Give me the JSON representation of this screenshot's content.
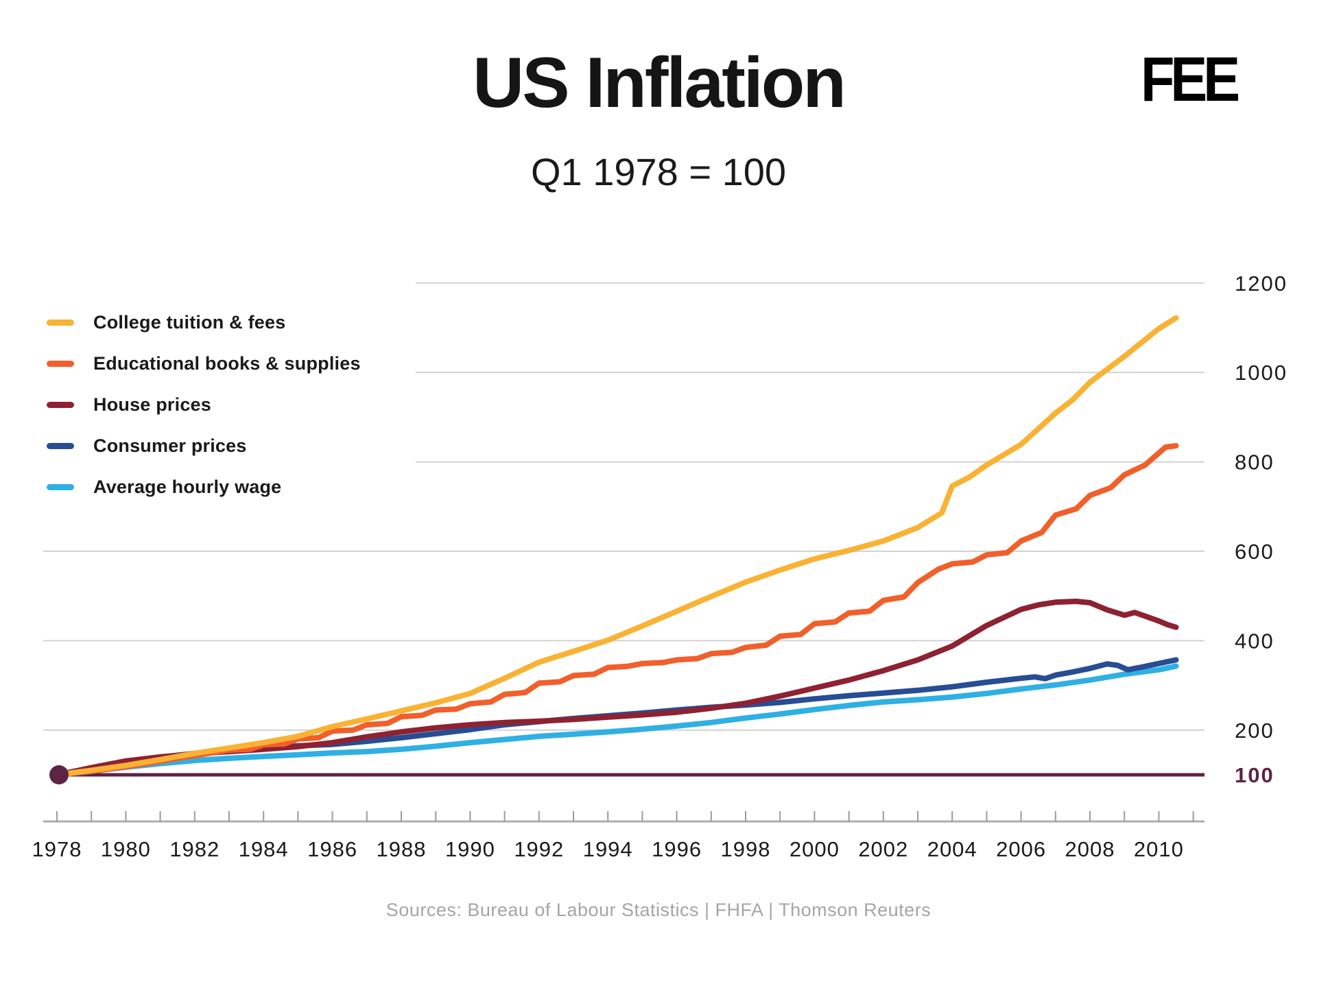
{
  "header": {
    "title": "US Inflation",
    "subtitle": "Q1 1978 = 100",
    "logo": "FEE"
  },
  "source_line": "Sources: Bureau of Labour Statistics | FHFA | Thomson Reuters",
  "colors": {
    "title_text": "#151515",
    "axis_label": "#1a1a1a",
    "gridline": "#d2d2d2",
    "axis_line": "#adadad",
    "tick": "#9a9a9a",
    "baseline": "#5d2444",
    "source_text": "#a5a5a5"
  },
  "legend": {
    "items": [
      {
        "label": "College tuition & fees",
        "color": "#f9b233"
      },
      {
        "label": "Educational books & supplies",
        "color": "#f15f2b"
      },
      {
        "label": "House prices",
        "color": "#8e2232"
      },
      {
        "label": "Consumer prices",
        "color": "#274d94"
      },
      {
        "label": "Average hourly wage",
        "color": "#2fb0e4"
      }
    ]
  },
  "chart_data": {
    "type": "line",
    "title": "US Inflation",
    "subtitle": "Q1 1978 = 100",
    "xlabel": "",
    "ylabel": "",
    "xlim": [
      1978,
      2011.3
    ],
    "ylim": [
      100,
      1230
    ],
    "grid": "horizontal-only",
    "legend_position": "upper-left-outside-plot",
    "x_axis": {
      "minor_tick_start": 1978,
      "minor_tick_end": 2011,
      "label_years": [
        1978,
        1980,
        1982,
        1984,
        1986,
        1988,
        1990,
        1992,
        1994,
        1996,
        1998,
        2000,
        2002,
        2004,
        2006,
        2008,
        2010
      ]
    },
    "y_axis": {
      "labels": [
        {
          "value": 1200,
          "text": "1200",
          "bold": false,
          "color": "#1a1a1a"
        },
        {
          "value": 1000,
          "text": "1000",
          "bold": false,
          "color": "#1a1a1a"
        },
        {
          "value": 800,
          "text": "800",
          "bold": false,
          "color": "#1a1a1a"
        },
        {
          "value": 600,
          "text": "600",
          "bold": false,
          "color": "#1a1a1a"
        },
        {
          "value": 400,
          "text": "400",
          "bold": false,
          "color": "#1a1a1a"
        },
        {
          "value": 200,
          "text": "200",
          "bold": false,
          "color": "#1a1a1a"
        },
        {
          "value": 100,
          "text": "100",
          "bold": true,
          "color": "#5d2444"
        }
      ],
      "gridline_values": [
        200,
        400,
        600,
        800,
        1000,
        1200
      ],
      "short_gridline_values": [
        800,
        1000,
        1200
      ]
    },
    "baseline": {
      "value": 100,
      "color": "#5d2444",
      "start_marker_year": 1978
    },
    "series": [
      {
        "name": "Average hourly wage",
        "slug": "average-hourly-wage",
        "color": "#2fb0e4",
        "points": [
          [
            1978,
            100
          ],
          [
            1979,
            108
          ],
          [
            1980,
            117
          ],
          [
            1981,
            125
          ],
          [
            1982,
            132
          ],
          [
            1983,
            137
          ],
          [
            1984,
            141
          ],
          [
            1985,
            145
          ],
          [
            1986,
            149
          ],
          [
            1987,
            152
          ],
          [
            1988,
            157
          ],
          [
            1989,
            164
          ],
          [
            1990,
            172
          ],
          [
            1991,
            179
          ],
          [
            1992,
            186
          ],
          [
            1993,
            191
          ],
          [
            1994,
            196
          ],
          [
            1995,
            202
          ],
          [
            1996,
            209
          ],
          [
            1997,
            217
          ],
          [
            1998,
            227
          ],
          [
            1999,
            236
          ],
          [
            2000,
            246
          ],
          [
            2001,
            255
          ],
          [
            2002,
            263
          ],
          [
            2003,
            268
          ],
          [
            2004,
            274
          ],
          [
            2005,
            282
          ],
          [
            2006,
            292
          ],
          [
            2007,
            301
          ],
          [
            2008,
            312
          ],
          [
            2009,
            325
          ],
          [
            2010,
            335
          ],
          [
            2010.5,
            343
          ]
        ]
      },
      {
        "name": "Consumer prices",
        "slug": "consumer-prices",
        "color": "#274d94",
        "points": [
          [
            1978,
            100
          ],
          [
            1979,
            111
          ],
          [
            1980,
            126
          ],
          [
            1981,
            139
          ],
          [
            1982,
            148
          ],
          [
            1983,
            153
          ],
          [
            1984,
            159
          ],
          [
            1985,
            165
          ],
          [
            1986,
            168
          ],
          [
            1987,
            175
          ],
          [
            1988,
            183
          ],
          [
            1989,
            192
          ],
          [
            1990,
            201
          ],
          [
            1991,
            212
          ],
          [
            1992,
            219
          ],
          [
            1993,
            226
          ],
          [
            1994,
            232
          ],
          [
            1995,
            238
          ],
          [
            1996,
            245
          ],
          [
            1997,
            251
          ],
          [
            1998,
            256
          ],
          [
            1999,
            262
          ],
          [
            2000,
            270
          ],
          [
            2001,
            277
          ],
          [
            2002,
            283
          ],
          [
            2003,
            289
          ],
          [
            2004,
            297
          ],
          [
            2005,
            307
          ],
          [
            2006,
            316
          ],
          [
            2006.4,
            319
          ],
          [
            2006.7,
            315
          ],
          [
            2007,
            323
          ],
          [
            2007.5,
            330
          ],
          [
            2008,
            338
          ],
          [
            2008.5,
            348
          ],
          [
            2008.8,
            345
          ],
          [
            2009.1,
            335
          ],
          [
            2009.5,
            341
          ],
          [
            2010,
            349
          ],
          [
            2010.25,
            353
          ],
          [
            2010.5,
            357
          ]
        ]
      },
      {
        "name": "House prices",
        "slug": "house-prices",
        "color": "#8e2232",
        "points": [
          [
            1978,
            100
          ],
          [
            1979,
            116
          ],
          [
            1980,
            131
          ],
          [
            1981,
            140
          ],
          [
            1982,
            147
          ],
          [
            1983,
            152
          ],
          [
            1984,
            157
          ],
          [
            1985,
            163
          ],
          [
            1986,
            172
          ],
          [
            1987,
            185
          ],
          [
            1988,
            196
          ],
          [
            1989,
            205
          ],
          [
            1990,
            212
          ],
          [
            1991,
            217
          ],
          [
            1992,
            220
          ],
          [
            1993,
            224
          ],
          [
            1994,
            229
          ],
          [
            1995,
            234
          ],
          [
            1996,
            240
          ],
          [
            1997,
            249
          ],
          [
            1998,
            260
          ],
          [
            1999,
            276
          ],
          [
            2000,
            294
          ],
          [
            2001,
            312
          ],
          [
            2002,
            333
          ],
          [
            2003,
            357
          ],
          [
            2004,
            388
          ],
          [
            2005,
            434
          ],
          [
            2006,
            470
          ],
          [
            2006.5,
            480
          ],
          [
            2007,
            486
          ],
          [
            2007.6,
            488
          ],
          [
            2008,
            485
          ],
          [
            2008.5,
            469
          ],
          [
            2009,
            457
          ],
          [
            2009.3,
            463
          ],
          [
            2009.6,
            455
          ],
          [
            2010,
            444
          ],
          [
            2010.25,
            436
          ],
          [
            2010.5,
            430
          ]
        ]
      },
      {
        "name": "Educational books & supplies",
        "slug": "educational-books-supplies",
        "color": "#f15f2b",
        "points": [
          [
            1978,
            100
          ],
          [
            1978.5,
            104
          ],
          [
            1979,
            108
          ],
          [
            1979.5,
            113
          ],
          [
            1980,
            118
          ],
          [
            1980.5,
            124
          ],
          [
            1981,
            130
          ],
          [
            1981.5,
            137
          ],
          [
            1982,
            143
          ],
          [
            1982.5,
            149
          ],
          [
            1983,
            155
          ],
          [
            1983.6,
            157
          ],
          [
            1984,
            167
          ],
          [
            1984.6,
            169
          ],
          [
            1985,
            180
          ],
          [
            1985.6,
            183
          ],
          [
            1986,
            198
          ],
          [
            1986.6,
            200
          ],
          [
            1987,
            212
          ],
          [
            1987.6,
            215
          ],
          [
            1988,
            230
          ],
          [
            1988.6,
            233
          ],
          [
            1989,
            245
          ],
          [
            1989.6,
            247
          ],
          [
            1990,
            259
          ],
          [
            1990.6,
            263
          ],
          [
            1991,
            280
          ],
          [
            1991.6,
            284
          ],
          [
            1992,
            305
          ],
          [
            1992.6,
            308
          ],
          [
            1993,
            322
          ],
          [
            1993.6,
            325
          ],
          [
            1994,
            340
          ],
          [
            1994.6,
            343
          ],
          [
            1995,
            349
          ],
          [
            1995.6,
            351
          ],
          [
            1996,
            357
          ],
          [
            1996.6,
            360
          ],
          [
            1997,
            371
          ],
          [
            1997.6,
            374
          ],
          [
            1998,
            385
          ],
          [
            1998.6,
            390
          ],
          [
            1999,
            410
          ],
          [
            1999.6,
            414
          ],
          [
            2000,
            438
          ],
          [
            2000.6,
            442
          ],
          [
            2001,
            462
          ],
          [
            2001.6,
            466
          ],
          [
            2002,
            490
          ],
          [
            2002.6,
            498
          ],
          [
            2003,
            530
          ],
          [
            2003.6,
            560
          ],
          [
            2004,
            572
          ],
          [
            2004.6,
            576
          ],
          [
            2005,
            592
          ],
          [
            2005.6,
            597
          ],
          [
            2006,
            623
          ],
          [
            2006.6,
            642
          ],
          [
            2007,
            681
          ],
          [
            2007.6,
            695
          ],
          [
            2008,
            725
          ],
          [
            2008.6,
            742
          ],
          [
            2009,
            771
          ],
          [
            2009.6,
            793
          ],
          [
            2010,
            820
          ],
          [
            2010.2,
            833
          ],
          [
            2010.5,
            836
          ]
        ]
      },
      {
        "name": "College tuition & fees",
        "slug": "college-tuition-fees",
        "color": "#f9b233",
        "points": [
          [
            1978,
            100
          ],
          [
            1979,
            110
          ],
          [
            1980,
            121
          ],
          [
            1981,
            134
          ],
          [
            1982,
            148
          ],
          [
            1983,
            160
          ],
          [
            1984,
            172
          ],
          [
            1985,
            186
          ],
          [
            1986,
            208
          ],
          [
            1987,
            225
          ],
          [
            1988,
            243
          ],
          [
            1989,
            261
          ],
          [
            1990,
            282
          ],
          [
            1991,
            316
          ],
          [
            1992,
            352
          ],
          [
            1993,
            376
          ],
          [
            1994,
            401
          ],
          [
            1995,
            433
          ],
          [
            1996,
            466
          ],
          [
            1997,
            499
          ],
          [
            1998,
            531
          ],
          [
            1999,
            558
          ],
          [
            2000,
            583
          ],
          [
            2001,
            602
          ],
          [
            2002,
            623
          ],
          [
            2003,
            653
          ],
          [
            2003.7,
            686
          ],
          [
            2004,
            746
          ],
          [
            2004.5,
            766
          ],
          [
            2005,
            793
          ],
          [
            2006,
            839
          ],
          [
            2007,
            909
          ],
          [
            2007.5,
            939
          ],
          [
            2008,
            978
          ],
          [
            2009,
            1036
          ],
          [
            2010,
            1098
          ],
          [
            2010.5,
            1122
          ]
        ]
      }
    ]
  }
}
